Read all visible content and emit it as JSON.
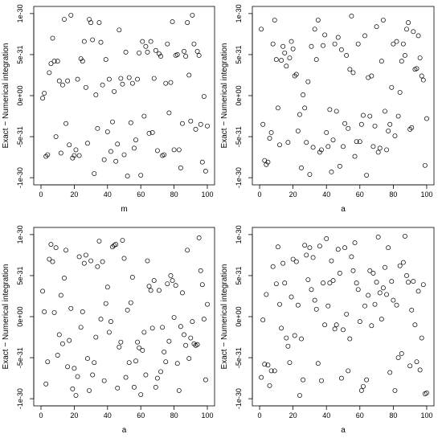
{
  "chart_data": [
    {
      "type": "scatter",
      "xlabel": "m",
      "ylabel": "Exact − Numerical integration",
      "xlim": [
        0,
        100
      ],
      "ylim": [
        -1e-30,
        1e-30
      ],
      "xticks": [
        0,
        20,
        40,
        60,
        80,
        100
      ],
      "xtick_labels": [
        "0",
        "20",
        "40",
        "60",
        "80",
        "100"
      ],
      "yticks": [
        -1e-30,
        -5e-31,
        0,
        5e-31,
        1e-30
      ],
      "ytick_labels": [
        "-1e-30",
        "-5e-31",
        "0e+00",
        "5e-31",
        "1e-30"
      ],
      "y_units": 1e-31,
      "points_y": [
        -0.3,
        0.3,
        -7.4,
        -7.2,
        2.8,
        3.9,
        7.0,
        4.2,
        -5.0,
        4.2,
        1.8,
        -7.0,
        1.3,
        9.3,
        -3.4,
        1.8,
        -6.0,
        9.8,
        -7.6,
        -7.3,
        -6.6,
        2.0,
        -7.3,
        4.5,
        4.2,
        6.6,
        1.0,
        -5.8,
        9.3,
        8.9,
        6.8,
        -9.5,
        0.1,
        -4.0,
        8.9,
        6.5,
        1.3,
        -7.8,
        4.4,
        -4.4,
        2.0,
        -6.8,
        -3.2,
        0.5,
        -8.0,
        -5.9,
        8.0,
        2.1,
        1.4,
        -7.2,
        5.3,
        -9.8,
        2.2,
        -3.3,
        1.5,
        -6.4,
        -5.4,
        2.0,
        5.2,
        -9.7,
        6.6,
        -2.5,
        6.0,
        5.3,
        -4.6,
        6.6,
        -4.5,
        2.1,
        5.5,
        -6.7,
        5.1,
        4.8,
        -7.3,
        -7.2,
        1.5,
        6.3,
        -2.1,
        1.6,
        9.0,
        -6.6,
        4.9,
        5.0,
        -6.6,
        -8.8,
        -3.4,
        5.4,
        4.8,
        8.9,
        2.5,
        -3.1,
        9.8,
        6.3,
        -4.1,
        5.4,
        4.9,
        -3.5,
        -8.1,
        -0.1,
        -9.2,
        -3.7
      ]
    },
    {
      "type": "scatter",
      "xlabel": "a",
      "ylabel": "Exact − Numerical integration",
      "xlim": [
        0,
        100
      ],
      "ylim": [
        -1e-30,
        1e-30
      ],
      "xticks": [
        0,
        20,
        40,
        60,
        80,
        100
      ],
      "xtick_labels": [
        "0",
        "20",
        "40",
        "60",
        "80",
        "100"
      ],
      "yticks": [
        -1e-30,
        -5e-31,
        0,
        5e-31,
        1e-30
      ],
      "ytick_labels": [
        "-1e-30",
        "-5e-31",
        "0e+00",
        "5e-31",
        "1e-30"
      ],
      "y_units": 1e-31,
      "points_y": [
        8.1,
        -3.5,
        -7.9,
        -8.4,
        -8.1,
        -5.2,
        -4.5,
        6.3,
        9.2,
        4.4,
        -1.5,
        -6.0,
        4.3,
        6.0,
        5.2,
        3.6,
        -5.7,
        4.6,
        6.6,
        5.7,
        2.4,
        2.6,
        -4.3,
        -2.3,
        -8.8,
        0.1,
        -1.5,
        -5.7,
        1.7,
        -9.6,
        6.0,
        -6.3,
        8.1,
        4.4,
        9.2,
        -6.9,
        -6.6,
        6.1,
        7.4,
        -4.5,
        -6.2,
        -1.7,
        -9.3,
        -5.4,
        6.3,
        -1.9,
        7.1,
        -8.6,
        5.6,
        -6.2,
        -3.4,
        4.9,
        -4.0,
        3.2,
        9.7,
        2.8,
        -7.4,
        -5.6,
        6.3,
        -5.6,
        -3.5,
        -2.4,
        7.3,
        -9.7,
        2.2,
        -2.5,
        2.4,
        -6.2,
        -3.7,
        8.4,
        -6.9,
        -6.4,
        4.2,
        9.2,
        -1.9,
        -6.6,
        -4.3,
        -3.5,
        1.0,
        6.3,
        -4.9,
        6.6,
        -2.5,
        0.4,
        4.2,
        6.3,
        4.9,
        8.1,
        8.9,
        -4.1,
        -3.9,
        7.8,
        3.2,
        3.3,
        7.3,
        4.6,
        2.4,
        1.9,
        -8.5,
        -2.8
      ]
    },
    {
      "type": "scatter",
      "xlabel": "a",
      "ylabel": "Exact − Numerical integration",
      "xlim": [
        0,
        100
      ],
      "ylim": [
        -1e-30,
        1e-30
      ],
      "xticks": [
        0,
        20,
        40,
        60,
        80,
        100
      ],
      "xtick_labels": [
        "0",
        "20",
        "40",
        "60",
        "80",
        "100"
      ],
      "yticks": [
        -1e-30,
        -5e-31,
        0,
        5e-31,
        1e-30
      ],
      "ytick_labels": [
        "-1e-30",
        "-5e-31",
        "0e+00",
        "5e-31",
        "1e-30"
      ],
      "y_units": 1e-31,
      "points_y": [
        3.1,
        0.6,
        -8.2,
        -5.5,
        7.0,
        8.8,
        6.7,
        0.5,
        8.4,
        -4.7,
        -2.2,
        2.6,
        -3.3,
        4.7,
        8.1,
        -6.1,
        -2.9,
        1.0,
        -8.8,
        -6.3,
        -9.6,
        -7.3,
        7.3,
        -1.3,
        0.6,
        6.5,
        7.5,
        -5.1,
        -9.0,
        6.8,
        -7.1,
        -5.6,
        -2.5,
        6.1,
        9.2,
        -0.3,
        6.7,
        -7.8,
        1.6,
        3.6,
        -1.9,
        -0.6,
        8.5,
        8.7,
        8.8,
        -8.7,
        -3.7,
        -3.1,
        9.3,
        7.1,
        -7.4,
        0.8,
        -5.6,
        1.7,
        4.8,
        -8.6,
        -5.4,
        -3.1,
        -3.8,
        -9.5,
        -4.1,
        -1.9,
        -7.1,
        6.8,
        3.7,
        3.2,
        -1.4,
        4.4,
        -8.6,
        -7.5,
        3.2,
        -6.7,
        -1.3,
        -4.3,
        -5.5,
        4.0,
        -3.0,
        5.0,
        4.4,
        -0.1,
        3.8,
        -5.7,
        -9.0,
        -1.2,
        2.9,
        -2.2,
        -3.5,
        8.1,
        -5.1,
        -2.6,
        -0.6,
        -3.3,
        -3.5,
        -3.4,
        9.6,
        5.6,
        3.9,
        -0.3,
        -7.7,
        1.5
      ]
    },
    {
      "type": "scatter",
      "xlabel": "a",
      "ylabel": "Exact − Numerical integration",
      "xlim": [
        0,
        100
      ],
      "ylim": [
        -1e-30,
        1e-30
      ],
      "xticks": [
        0,
        20,
        40,
        60,
        80,
        100
      ],
      "xtick_labels": [
        "0",
        "20",
        "40",
        "60",
        "80",
        "100"
      ],
      "yticks": [
        -1e-30,
        -5e-31,
        0,
        5e-31,
        1e-30
      ],
      "ytick_labels": [
        "-1e-30",
        "-5e-31",
        "0e+00",
        "5e-31",
        "1e-30"
      ],
      "y_units": 1e-31,
      "points_y": [
        -7.4,
        -0.4,
        -5.8,
        2.7,
        -5.9,
        -8.4,
        -6.6,
        6.1,
        -6.6,
        4.0,
        8.5,
        1.5,
        -1.4,
        6.5,
        4.1,
        -2.6,
        -3.6,
        -5.6,
        2.4,
        7.0,
        -2.3,
        6.7,
        1.4,
        -9.6,
        -2.7,
        -7.7,
        8.7,
        7.5,
        4.5,
        8.4,
        3.3,
        7.2,
        2.0,
        0.9,
        -5.7,
        8.6,
        -7.8,
        4.1,
        -1.0,
        9.5,
        1.3,
        4.1,
        6.8,
        4.4,
        -1.5,
        -1.0,
        8.2,
        5.3,
        -7.5,
        -1.6,
        8.4,
        0.3,
        -6.6,
        -2.7,
        7.3,
        5.6,
        9.0,
        4.1,
        3.3,
        -0.6,
        -9.0,
        -8.5,
        1.3,
        -7.7,
        2.6,
        5.6,
        -1.1,
        5.3,
        1.5,
        4.2,
        9.7,
        2.9,
        -0.3,
        3.5,
        6.0,
        2.7,
        8.4,
        -6.8,
        4.3,
        2.0,
        -9.0,
        1.4,
        -5.0,
        6.2,
        -4.5,
        6.6,
        9.8,
        5.0,
        4.2,
        -6.0,
        0.8,
        4.3,
        -1.0,
        -5.5,
        3.1,
        -6.5,
        -2.6,
        3.9,
        -9.4,
        -9.3
      ]
    }
  ]
}
